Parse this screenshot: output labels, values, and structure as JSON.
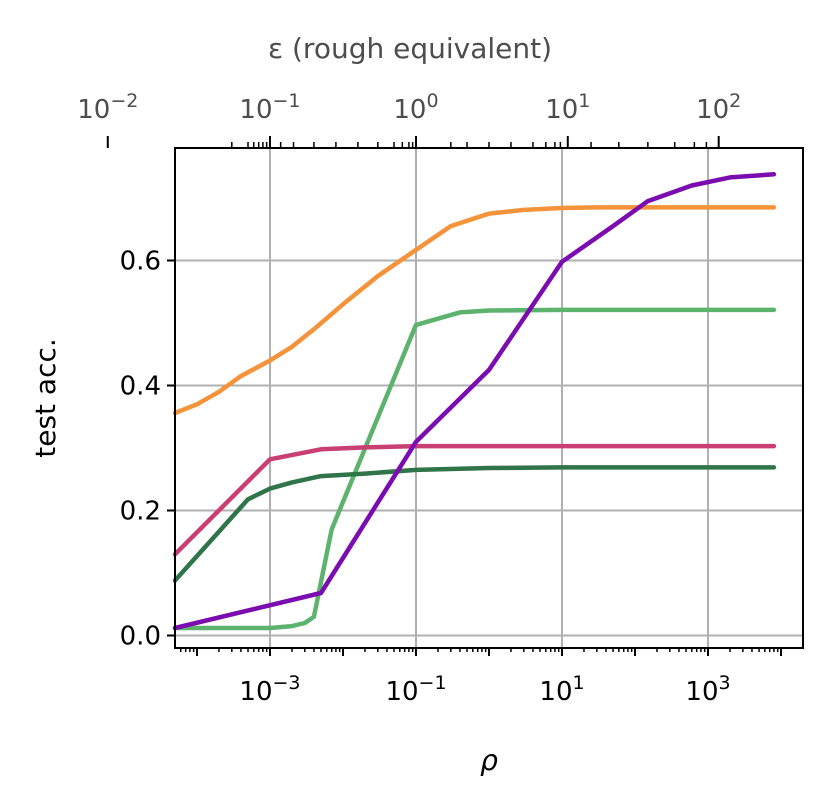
{
  "chart_data": {
    "type": "line",
    "xlabel": "ρ",
    "ylabel": "test acc.",
    "xscale": "log",
    "xlim": [
      5e-05,
      20000
    ],
    "ylim": [
      -0.02,
      0.78
    ],
    "grid": true,
    "x_ticks": [
      {
        "value": 0.001,
        "base": "10",
        "exp": "−3"
      },
      {
        "value": 0.1,
        "base": "10",
        "exp": "−1"
      },
      {
        "value": 10,
        "base": "10",
        "exp": "1"
      },
      {
        "value": 1000,
        "base": "10",
        "exp": "3"
      }
    ],
    "y_ticks": [
      {
        "value": 0.0,
        "label": "0.0"
      },
      {
        "value": 0.2,
        "label": "0.2"
      },
      {
        "value": 0.4,
        "label": "0.4"
      },
      {
        "value": 0.6,
        "label": "0.6"
      }
    ],
    "top_axis": {
      "label": "ε (rough equivalent)",
      "color": "#4d4d4d",
      "ticks": [
        {
          "rho": 6e-06,
          "base": "10",
          "exp": "−2"
        },
        {
          "rho": 0.001,
          "base": "10",
          "exp": "−1"
        },
        {
          "rho": 0.1,
          "base": "10",
          "exp": "0"
        },
        {
          "rho": 12,
          "base": "10",
          "exp": "1"
        },
        {
          "rho": 1400,
          "base": "10",
          "exp": "2"
        }
      ],
      "minor_ticks": [
        0.0003,
        0.0005,
        0.0006,
        0.0007,
        0.0008,
        0.0009,
        0.0014,
        0.0021,
        0.004,
        0.008,
        0.016,
        0.03,
        0.05,
        0.065,
        0.08,
        0.09,
        0.3,
        0.5,
        1.0,
        2.0,
        4.0,
        6.0,
        8.0,
        9.5,
        25,
        60,
        150,
        350,
        650,
        950
      ]
    },
    "series": [
      {
        "color": "#f5933a",
        "x": [
          5e-05,
          0.0001,
          0.0002,
          0.0004,
          0.001,
          0.002,
          0.004,
          0.01,
          0.03,
          0.1,
          0.3,
          1,
          3,
          10,
          30,
          100,
          1000,
          8000
        ],
        "y": [
          0.356,
          0.37,
          0.39,
          0.415,
          0.44,
          0.462,
          0.49,
          0.53,
          0.575,
          0.617,
          0.655,
          0.675,
          0.681,
          0.684,
          0.685,
          0.685,
          0.685,
          0.685
        ]
      },
      {
        "color": "#5db36d",
        "x": [
          5e-05,
          0.0003,
          0.001,
          0.002,
          0.003,
          0.004,
          0.007,
          0.1,
          0.4,
          1,
          10,
          100,
          8000
        ],
        "y": [
          0.012,
          0.012,
          0.012,
          0.015,
          0.02,
          0.03,
          0.17,
          0.497,
          0.517,
          0.52,
          0.521,
          0.521,
          0.521
        ]
      },
      {
        "color": "#c93f74",
        "x": [
          5e-05,
          0.001,
          0.005,
          0.02,
          0.1,
          1,
          10,
          100,
          8000
        ],
        "y": [
          0.13,
          0.282,
          0.298,
          0.301,
          0.303,
          0.303,
          0.303,
          0.303,
          0.303
        ]
      },
      {
        "color": "#2f7549",
        "x": [
          5e-05,
          0.0005,
          0.001,
          0.002,
          0.005,
          0.02,
          0.1,
          1,
          10,
          100,
          8000
        ],
        "y": [
          0.088,
          0.218,
          0.235,
          0.245,
          0.255,
          0.259,
          0.265,
          0.268,
          0.269,
          0.269,
          0.269
        ]
      },
      {
        "color": "#7b0cb0",
        "x": [
          5e-05,
          0.005,
          0.1,
          1,
          10,
          50,
          150,
          600,
          2000,
          8000
        ],
        "y": [
          0.012,
          0.068,
          0.31,
          0.425,
          0.598,
          0.655,
          0.695,
          0.72,
          0.733,
          0.738
        ]
      }
    ]
  }
}
